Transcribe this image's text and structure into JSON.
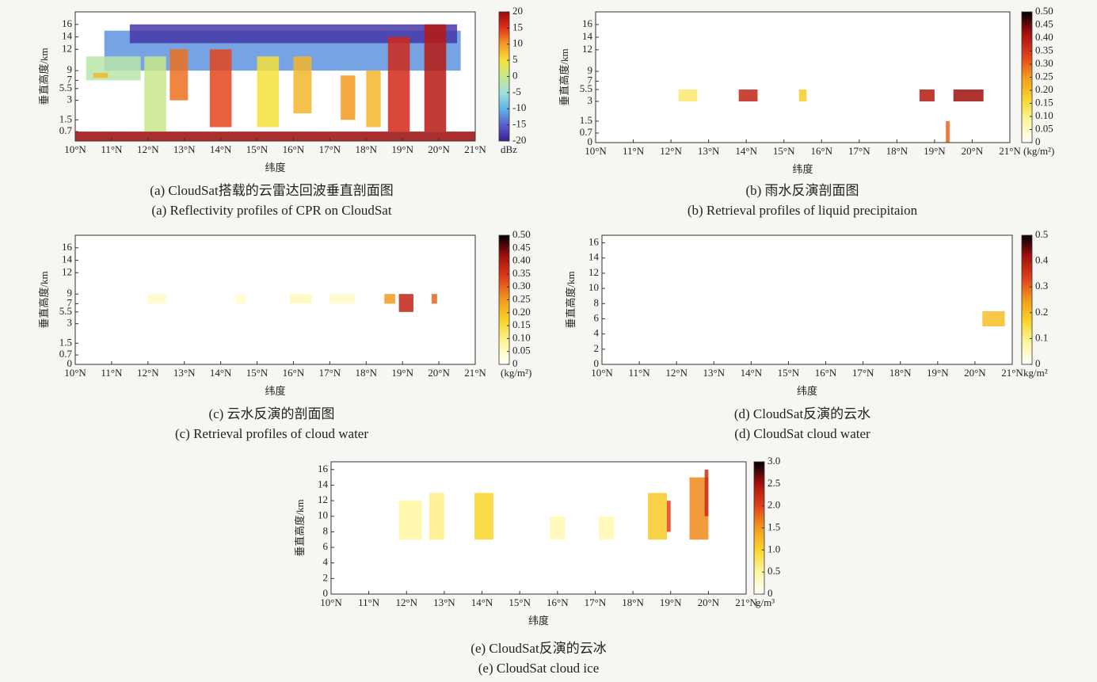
{
  "chart_data": [
    {
      "type": "heatmap",
      "caption": [
        "(a) CloudSat搭载的云雷达回波垂直剖面图",
        "(a) Reflectivity profiles of CPR on CloudSat"
      ],
      "xlabel": "纬度",
      "ylabel": "垂直高度/km",
      "colorbar_label": "dBz",
      "yscale": "levels",
      "xlim": [
        10,
        21
      ],
      "xticks": [
        {
          "value": 10,
          "label": "10°N"
        },
        {
          "value": 11,
          "label": "11°N"
        },
        {
          "value": 12,
          "label": "12°N"
        },
        {
          "value": 13,
          "label": "13°N"
        },
        {
          "value": 14,
          "label": "14°N"
        },
        {
          "value": 15,
          "label": "15°N"
        },
        {
          "value": 16,
          "label": "16°N"
        },
        {
          "value": 17,
          "label": "17°N"
        },
        {
          "value": 18,
          "label": "18°N"
        },
        {
          "value": 19,
          "label": "19°N"
        },
        {
          "value": 20,
          "label": "20°N"
        },
        {
          "value": 21,
          "label": "21°N"
        }
      ],
      "ylim": [
        0,
        17
      ],
      "yticks": [
        0.7,
        1.5,
        3,
        5.5,
        7,
        9,
        12,
        14,
        16
      ],
      "clim": [
        -20,
        20
      ],
      "cticks": [
        -20,
        -15,
        -10,
        -5,
        0,
        5,
        10,
        15,
        20
      ],
      "colormap": [
        "#3b1d8f",
        "#5a5fd0",
        "#5fb6e8",
        "#9fe0d8",
        "#c8e88a",
        "#f5e03a",
        "#f59a22",
        "#e0301c",
        "#9c0a0a"
      ],
      "patches": [
        {
          "x": [
            10.8,
            20.6
          ],
          "y": [
            9,
            15
          ],
          "value": -12
        },
        {
          "x": [
            11.5,
            20.5
          ],
          "y": [
            13,
            16
          ],
          "value": -18
        },
        {
          "x": [
            10.3,
            11.8
          ],
          "y": [
            7,
            11
          ],
          "value": -2
        },
        {
          "x": [
            10.5,
            10.9
          ],
          "y": [
            7.5,
            8.5
          ],
          "value": 8
        },
        {
          "x": [
            11.9,
            12.5
          ],
          "y": [
            0.7,
            11
          ],
          "value": 0
        },
        {
          "x": [
            12.6,
            13.1
          ],
          "y": [
            3,
            12
          ],
          "value": 12
        },
        {
          "x": [
            13.7,
            14.3
          ],
          "y": [
            1,
            12
          ],
          "value": 14
        },
        {
          "x": [
            15.0,
            15.6
          ],
          "y": [
            1,
            11
          ],
          "value": 5
        },
        {
          "x": [
            16.0,
            16.5
          ],
          "y": [
            2,
            11
          ],
          "value": 8
        },
        {
          "x": [
            17.3,
            17.7
          ],
          "y": [
            1.5,
            8
          ],
          "value": 10
        },
        {
          "x": [
            18.0,
            18.4
          ],
          "y": [
            1,
            9
          ],
          "value": 8
        },
        {
          "x": [
            18.6,
            19.2
          ],
          "y": [
            0.7,
            14
          ],
          "value": 16
        },
        {
          "x": [
            19.6,
            20.2
          ],
          "y": [
            0.7,
            16
          ],
          "value": 18
        },
        {
          "x": [
            10,
            21
          ],
          "y": [
            0,
            0.7
          ],
          "value": 20
        }
      ]
    },
    {
      "type": "heatmap",
      "caption": [
        "(b) 雨水反演剖面图",
        "(b) Retrieval profiles of liquid precipitaion"
      ],
      "xlabel": "纬度",
      "ylabel": "垂直高度/km",
      "colorbar_label": "(kg/m²)",
      "yscale": "levels",
      "xlim": [
        10,
        21
      ],
      "xticks": [
        {
          "value": 10,
          "label": "10°N"
        },
        {
          "value": 11,
          "label": "11°N"
        },
        {
          "value": 12,
          "label": "12°N"
        },
        {
          "value": 13,
          "label": "13°N"
        },
        {
          "value": 14,
          "label": "14°N"
        },
        {
          "value": 15,
          "label": "15°N"
        },
        {
          "value": 16,
          "label": "16°N"
        },
        {
          "value": 17,
          "label": "17°N"
        },
        {
          "value": 18,
          "label": "18°N"
        },
        {
          "value": 19,
          "label": "19°N"
        },
        {
          "value": 20,
          "label": "20°N"
        },
        {
          "value": 21,
          "label": "21°N"
        }
      ],
      "ylim": [
        0,
        17
      ],
      "yticks": [
        0,
        0.7,
        1.5,
        3,
        5.5,
        7,
        9,
        12,
        14,
        16
      ],
      "clim": [
        0,
        0.5
      ],
      "cticks": [
        0,
        0.05,
        {
          "value": 0.1,
          "label": "0.10"
        },
        0.15,
        {
          "value": 0.2,
          "label": "0.20"
        },
        0.25,
        {
          "value": 0.3,
          "label": "0.30"
        },
        0.35,
        {
          "value": 0.4,
          "label": "0.40"
        },
        0.45,
        {
          "value": 0.5,
          "label": "0.50"
        }
      ],
      "colormap": [
        "#ffffff",
        "#fff6a0",
        "#f9d52a",
        "#f29b1c",
        "#e0401c",
        "#a8100e",
        "#000000"
      ],
      "patches": [
        {
          "x": [
            12.2,
            12.7
          ],
          "y": [
            3,
            5.5
          ],
          "value": 0.12
        },
        {
          "x": [
            13.8,
            14.3
          ],
          "y": [
            3,
            5.5
          ],
          "value": 0.38
        },
        {
          "x": [
            15.4,
            15.6
          ],
          "y": [
            3,
            5.5
          ],
          "value": 0.18
        },
        {
          "x": [
            18.6,
            19.0
          ],
          "y": [
            3,
            5.5
          ],
          "value": 0.4
        },
        {
          "x": [
            19.5,
            20.3
          ],
          "y": [
            3,
            5.5
          ],
          "value": 0.42
        },
        {
          "x": [
            19.3,
            19.4
          ],
          "y": [
            0,
            1.5
          ],
          "value": 0.3
        }
      ]
    },
    {
      "type": "heatmap",
      "caption": [
        "(c) 云水反演的剖面图",
        "(c) Retrieval profiles of cloud water"
      ],
      "xlabel": "纬度",
      "ylabel": "垂直高度/km",
      "colorbar_label": "(kg/m²)",
      "yscale": "levels",
      "xlim": [
        10,
        21
      ],
      "xticks": [
        {
          "value": 10,
          "label": "10°N"
        },
        {
          "value": 11,
          "label": "11°N"
        },
        {
          "value": 12,
          "label": "12°N"
        },
        {
          "value": 13,
          "label": "13°N"
        },
        {
          "value": 14,
          "label": "14°N"
        },
        {
          "value": 15,
          "label": "15°N"
        },
        {
          "value": 16,
          "label": "16°N"
        },
        {
          "value": 17,
          "label": "17°N"
        },
        {
          "value": 18,
          "label": "18°N"
        },
        {
          "value": 19,
          "label": "19°N"
        },
        {
          "value": 20,
          "label": "20°N"
        },
        {
          "value": 21,
          "label": "21°N"
        }
      ],
      "ylim": [
        0,
        17
      ],
      "yticks": [
        0,
        0.7,
        1.5,
        3,
        5.5,
        7,
        9,
        12,
        14,
        16
      ],
      "clim": [
        0,
        0.5
      ],
      "cticks": [
        0,
        0.05,
        {
          "value": 0.1,
          "label": "0.10"
        },
        0.15,
        {
          "value": 0.2,
          "label": "0.20"
        },
        0.25,
        {
          "value": 0.3,
          "label": "0.30"
        },
        0.35,
        {
          "value": 0.4,
          "label": "0.40"
        },
        0.45,
        {
          "value": 0.5,
          "label": "0.50"
        }
      ],
      "colormap": [
        "#ffffff",
        "#fff6a0",
        "#f9d52a",
        "#f29b1c",
        "#e0401c",
        "#a8100e",
        "#000000"
      ],
      "patches": [
        {
          "x": [
            12.0,
            12.5
          ],
          "y": [
            7,
            9
          ],
          "value": 0.05
        },
        {
          "x": [
            14.4,
            14.7
          ],
          "y": [
            7,
            9
          ],
          "value": 0.04
        },
        {
          "x": [
            15.9,
            16.5
          ],
          "y": [
            7,
            9
          ],
          "value": 0.06
        },
        {
          "x": [
            17.0,
            17.7
          ],
          "y": [
            7,
            9
          ],
          "value": 0.05
        },
        {
          "x": [
            18.5,
            18.8
          ],
          "y": [
            7,
            9
          ],
          "value": 0.25
        },
        {
          "x": [
            18.9,
            19.3
          ],
          "y": [
            5.5,
            9
          ],
          "value": 0.38
        },
        {
          "x": [
            19.8,
            19.95
          ],
          "y": [
            7,
            9
          ],
          "value": 0.3
        }
      ]
    },
    {
      "type": "heatmap",
      "caption": [
        "(d) CloudSat反演的云水",
        "(d) CloudSat cloud water"
      ],
      "xlabel": "纬度",
      "ylabel": "垂直高度/km",
      "colorbar_label": "kg/m²",
      "yscale": "linear",
      "xlim": [
        10,
        21
      ],
      "xticks": [
        {
          "value": 10,
          "label": "10°N"
        },
        {
          "value": 11,
          "label": "11°N"
        },
        {
          "value": 12,
          "label": "12°N"
        },
        {
          "value": 13,
          "label": "13°N"
        },
        {
          "value": 14,
          "label": "14°N"
        },
        {
          "value": 15,
          "label": "15°N"
        },
        {
          "value": 16,
          "label": "16°N"
        },
        {
          "value": 17,
          "label": "17°N"
        },
        {
          "value": 18,
          "label": "18°N"
        },
        {
          "value": 19,
          "label": "19°N"
        },
        {
          "value": 20,
          "label": "20°N"
        },
        {
          "value": 21,
          "label": "21°N"
        }
      ],
      "ylim": [
        0,
        17
      ],
      "yticks": [
        0,
        2,
        4,
        6,
        8,
        10,
        12,
        14,
        16
      ],
      "clim": [
        0,
        0.5
      ],
      "cticks": [
        0,
        0.1,
        0.2,
        0.3,
        0.4,
        0.5
      ],
      "colormap": [
        "#ffffff",
        "#fff6a0",
        "#f9d52a",
        "#f29b1c",
        "#e0401c",
        "#a8100e",
        "#000000"
      ],
      "patches": [
        {
          "x": [
            20.2,
            20.8
          ],
          "y": [
            5,
            7
          ],
          "value": 0.2
        }
      ]
    },
    {
      "type": "heatmap",
      "caption": [
        "(e) CloudSat反演的云冰",
        "(e) CloudSat cloud ice"
      ],
      "xlabel": "纬度",
      "ylabel": "垂直高度/km",
      "colorbar_label": "g/m³",
      "yscale": "linear",
      "xlim": [
        10,
        21
      ],
      "xticks": [
        {
          "value": 10,
          "label": "10°N"
        },
        {
          "value": 11,
          "label": "11°N"
        },
        {
          "value": 12,
          "label": "12°N"
        },
        {
          "value": 13,
          "label": "13°N"
        },
        {
          "value": 14,
          "label": "14°N"
        },
        {
          "value": 15,
          "label": "15°N"
        },
        {
          "value": 16,
          "label": "16°N"
        },
        {
          "value": 17,
          "label": "17°N"
        },
        {
          "value": 18,
          "label": "18°N"
        },
        {
          "value": 19,
          "label": "19°N"
        },
        {
          "value": 20,
          "label": "20°N"
        },
        {
          "value": 21,
          "label": "21°N"
        }
      ],
      "ylim": [
        0,
        17
      ],
      "yticks": [
        0,
        2,
        4,
        6,
        8,
        10,
        12,
        14,
        16
      ],
      "clim": [
        0,
        3
      ],
      "cticks": [
        0,
        0.5,
        {
          "value": 1,
          "label": "1.0"
        },
        1.5,
        {
          "value": 2,
          "label": "2.0"
        },
        2.5,
        {
          "value": 3,
          "label": "3.0"
        }
      ],
      "colormap": [
        "#ffffff",
        "#fff6a0",
        "#f9d52a",
        "#f29b1c",
        "#e0401c",
        "#a8100e",
        "#000000"
      ],
      "patches": [
        {
          "x": [
            11.8,
            12.4
          ],
          "y": [
            7,
            12
          ],
          "value": 0.5
        },
        {
          "x": [
            12.6,
            13.0
          ],
          "y": [
            7,
            13
          ],
          "value": 0.6
        },
        {
          "x": [
            13.8,
            14.3
          ],
          "y": [
            7,
            13
          ],
          "value": 1.0
        },
        {
          "x": [
            15.8,
            16.2
          ],
          "y": [
            7,
            10
          ],
          "value": 0.4
        },
        {
          "x": [
            17.1,
            17.5
          ],
          "y": [
            7,
            10
          ],
          "value": 0.4
        },
        {
          "x": [
            18.4,
            18.9
          ],
          "y": [
            7,
            13
          ],
          "value": 1.1
        },
        {
          "x": [
            18.9,
            19.0
          ],
          "y": [
            8,
            12
          ],
          "value": 2.0
        },
        {
          "x": [
            19.5,
            20.0
          ],
          "y": [
            7,
            15
          ],
          "value": 1.6
        },
        {
          "x": [
            19.9,
            20.0
          ],
          "y": [
            10,
            16
          ],
          "value": 2.2
        }
      ]
    }
  ]
}
